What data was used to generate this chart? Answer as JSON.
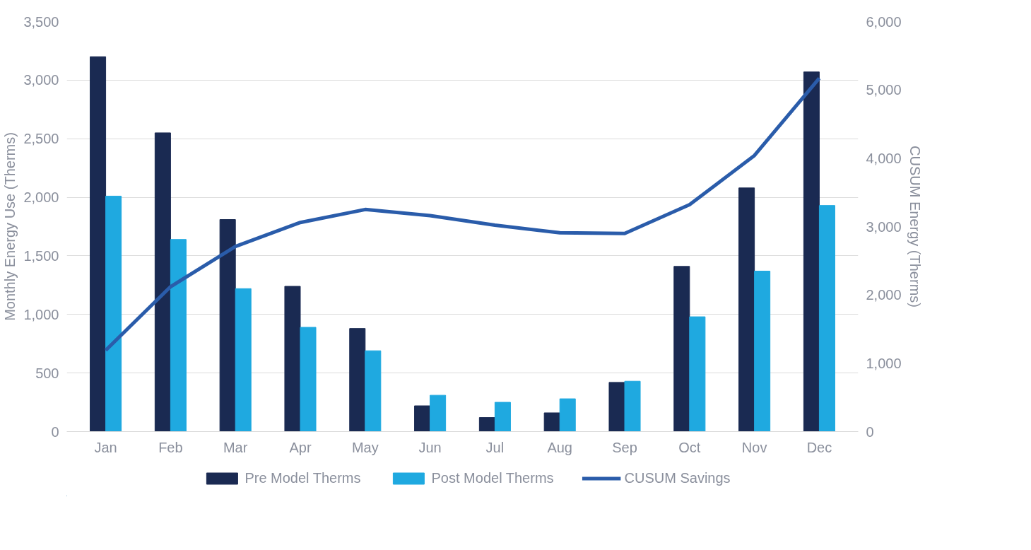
{
  "chart_data": {
    "type": "bar",
    "ylabel": "Monthly Energy Use (Therms)",
    "y2label": "CUSUM Energy (Therms)",
    "categories": [
      "Jan",
      "Feb",
      "Mar",
      "Apr",
      "May",
      "Jun",
      "Jul",
      "Aug",
      "Sep",
      "Oct",
      "Nov",
      "Dec"
    ],
    "series": [
      {
        "name": "Pre Model Therms",
        "color": "#1a2a52",
        "values": [
          3200,
          2550,
          1810,
          1240,
          880,
          220,
          120,
          160,
          420,
          1410,
          2080,
          3070
        ]
      },
      {
        "name": "Post Model Therms",
        "color": "#1fa9e0",
        "values": [
          2010,
          1640,
          1220,
          890,
          690,
          310,
          250,
          280,
          430,
          980,
          1370,
          1930
        ]
      },
      {
        "name": "CUSUM Savings",
        "type": "line",
        "axis": "y2",
        "color": "#2a5caa",
        "values": [
          1190,
          2120,
          2710,
          3060,
          3250,
          3160,
          3020,
          2910,
          2900,
          3320,
          4040,
          5170
        ]
      }
    ],
    "ylim": [
      0,
      3500
    ],
    "yticks": [
      0,
      {
        "value": 500,
        "label": "500"
      },
      {
        "value": 1000,
        "label": "1,000"
      },
      {
        "value": 1500,
        "label": "1,500"
      },
      {
        "value": 2000,
        "label": "2,000"
      },
      {
        "value": 2500,
        "label": "2,500"
      },
      {
        "value": 3000,
        "label": "3,000"
      },
      {
        "value": 3500,
        "label": "3,500"
      }
    ],
    "y2lim": [
      0,
      6000
    ],
    "y2ticks": [
      0,
      {
        "value": 1000,
        "label": "1,000"
      },
      {
        "value": 2000,
        "label": "2,000"
      },
      {
        "value": 3000,
        "label": "3,000"
      },
      {
        "value": 4000,
        "label": "4,000"
      },
      {
        "value": 5000,
        "label": "5,000"
      },
      {
        "value": 6000,
        "label": "6,000"
      }
    ],
    "grid": "y",
    "legend": "bottom"
  }
}
